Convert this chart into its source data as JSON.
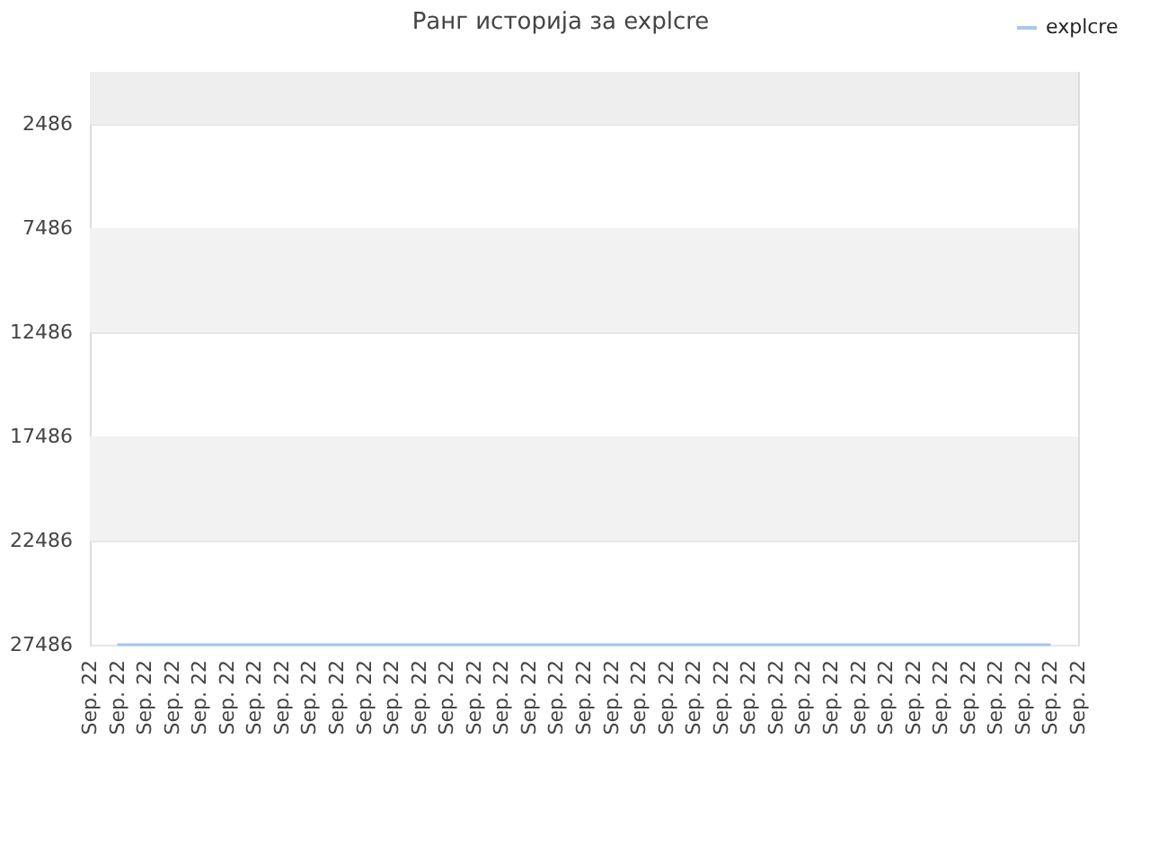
{
  "chart_data": {
    "type": "line",
    "title": "Ранг историја за explcre",
    "categories": [
      "Sep. 22",
      "Sep. 22",
      "Sep. 22",
      "Sep. 22",
      "Sep. 22",
      "Sep. 22",
      "Sep. 22",
      "Sep. 22",
      "Sep. 22",
      "Sep. 22",
      "Sep. 22",
      "Sep. 22",
      "Sep. 22",
      "Sep. 22",
      "Sep. 22",
      "Sep. 22",
      "Sep. 22",
      "Sep. 22",
      "Sep. 22",
      "Sep. 22",
      "Sep. 22",
      "Sep. 22",
      "Sep. 22",
      "Sep. 22",
      "Sep. 22",
      "Sep. 22",
      "Sep. 22",
      "Sep. 22",
      "Sep. 22",
      "Sep. 22",
      "Sep. 22",
      "Sep. 22",
      "Sep. 22",
      "Sep. 22",
      "Sep. 22",
      "Sep. 22",
      "Sep. 22"
    ],
    "series": [
      {
        "name": "explcre",
        "color": "#a4c8ef",
        "values": [
          null,
          27486,
          27486,
          27486,
          27486,
          27486,
          27486,
          27486,
          27486,
          27486,
          27486,
          27486,
          27486,
          27486,
          27486,
          27486,
          27486,
          27486,
          27486,
          27486,
          27486,
          27486,
          27486,
          27486,
          27486,
          27486,
          27486,
          27486,
          27486,
          27486,
          27486,
          27486,
          27486,
          27486,
          27486,
          27486,
          null
        ]
      }
    ],
    "ylim": [
      27486,
      0
    ],
    "yticks": [
      2486,
      7486,
      12486,
      17486,
      22486,
      27486
    ],
    "bands": [
      {
        "axis": "y",
        "from": 0,
        "to": 2486,
        "color": "#eeeeee"
      },
      {
        "axis": "y",
        "from": 7486,
        "to": 12486,
        "color": "#f2f2f2"
      },
      {
        "axis": "y",
        "from": 17486,
        "to": 22486,
        "color": "#f2f2f2"
      }
    ],
    "grid": "y",
    "legend": "top right"
  }
}
